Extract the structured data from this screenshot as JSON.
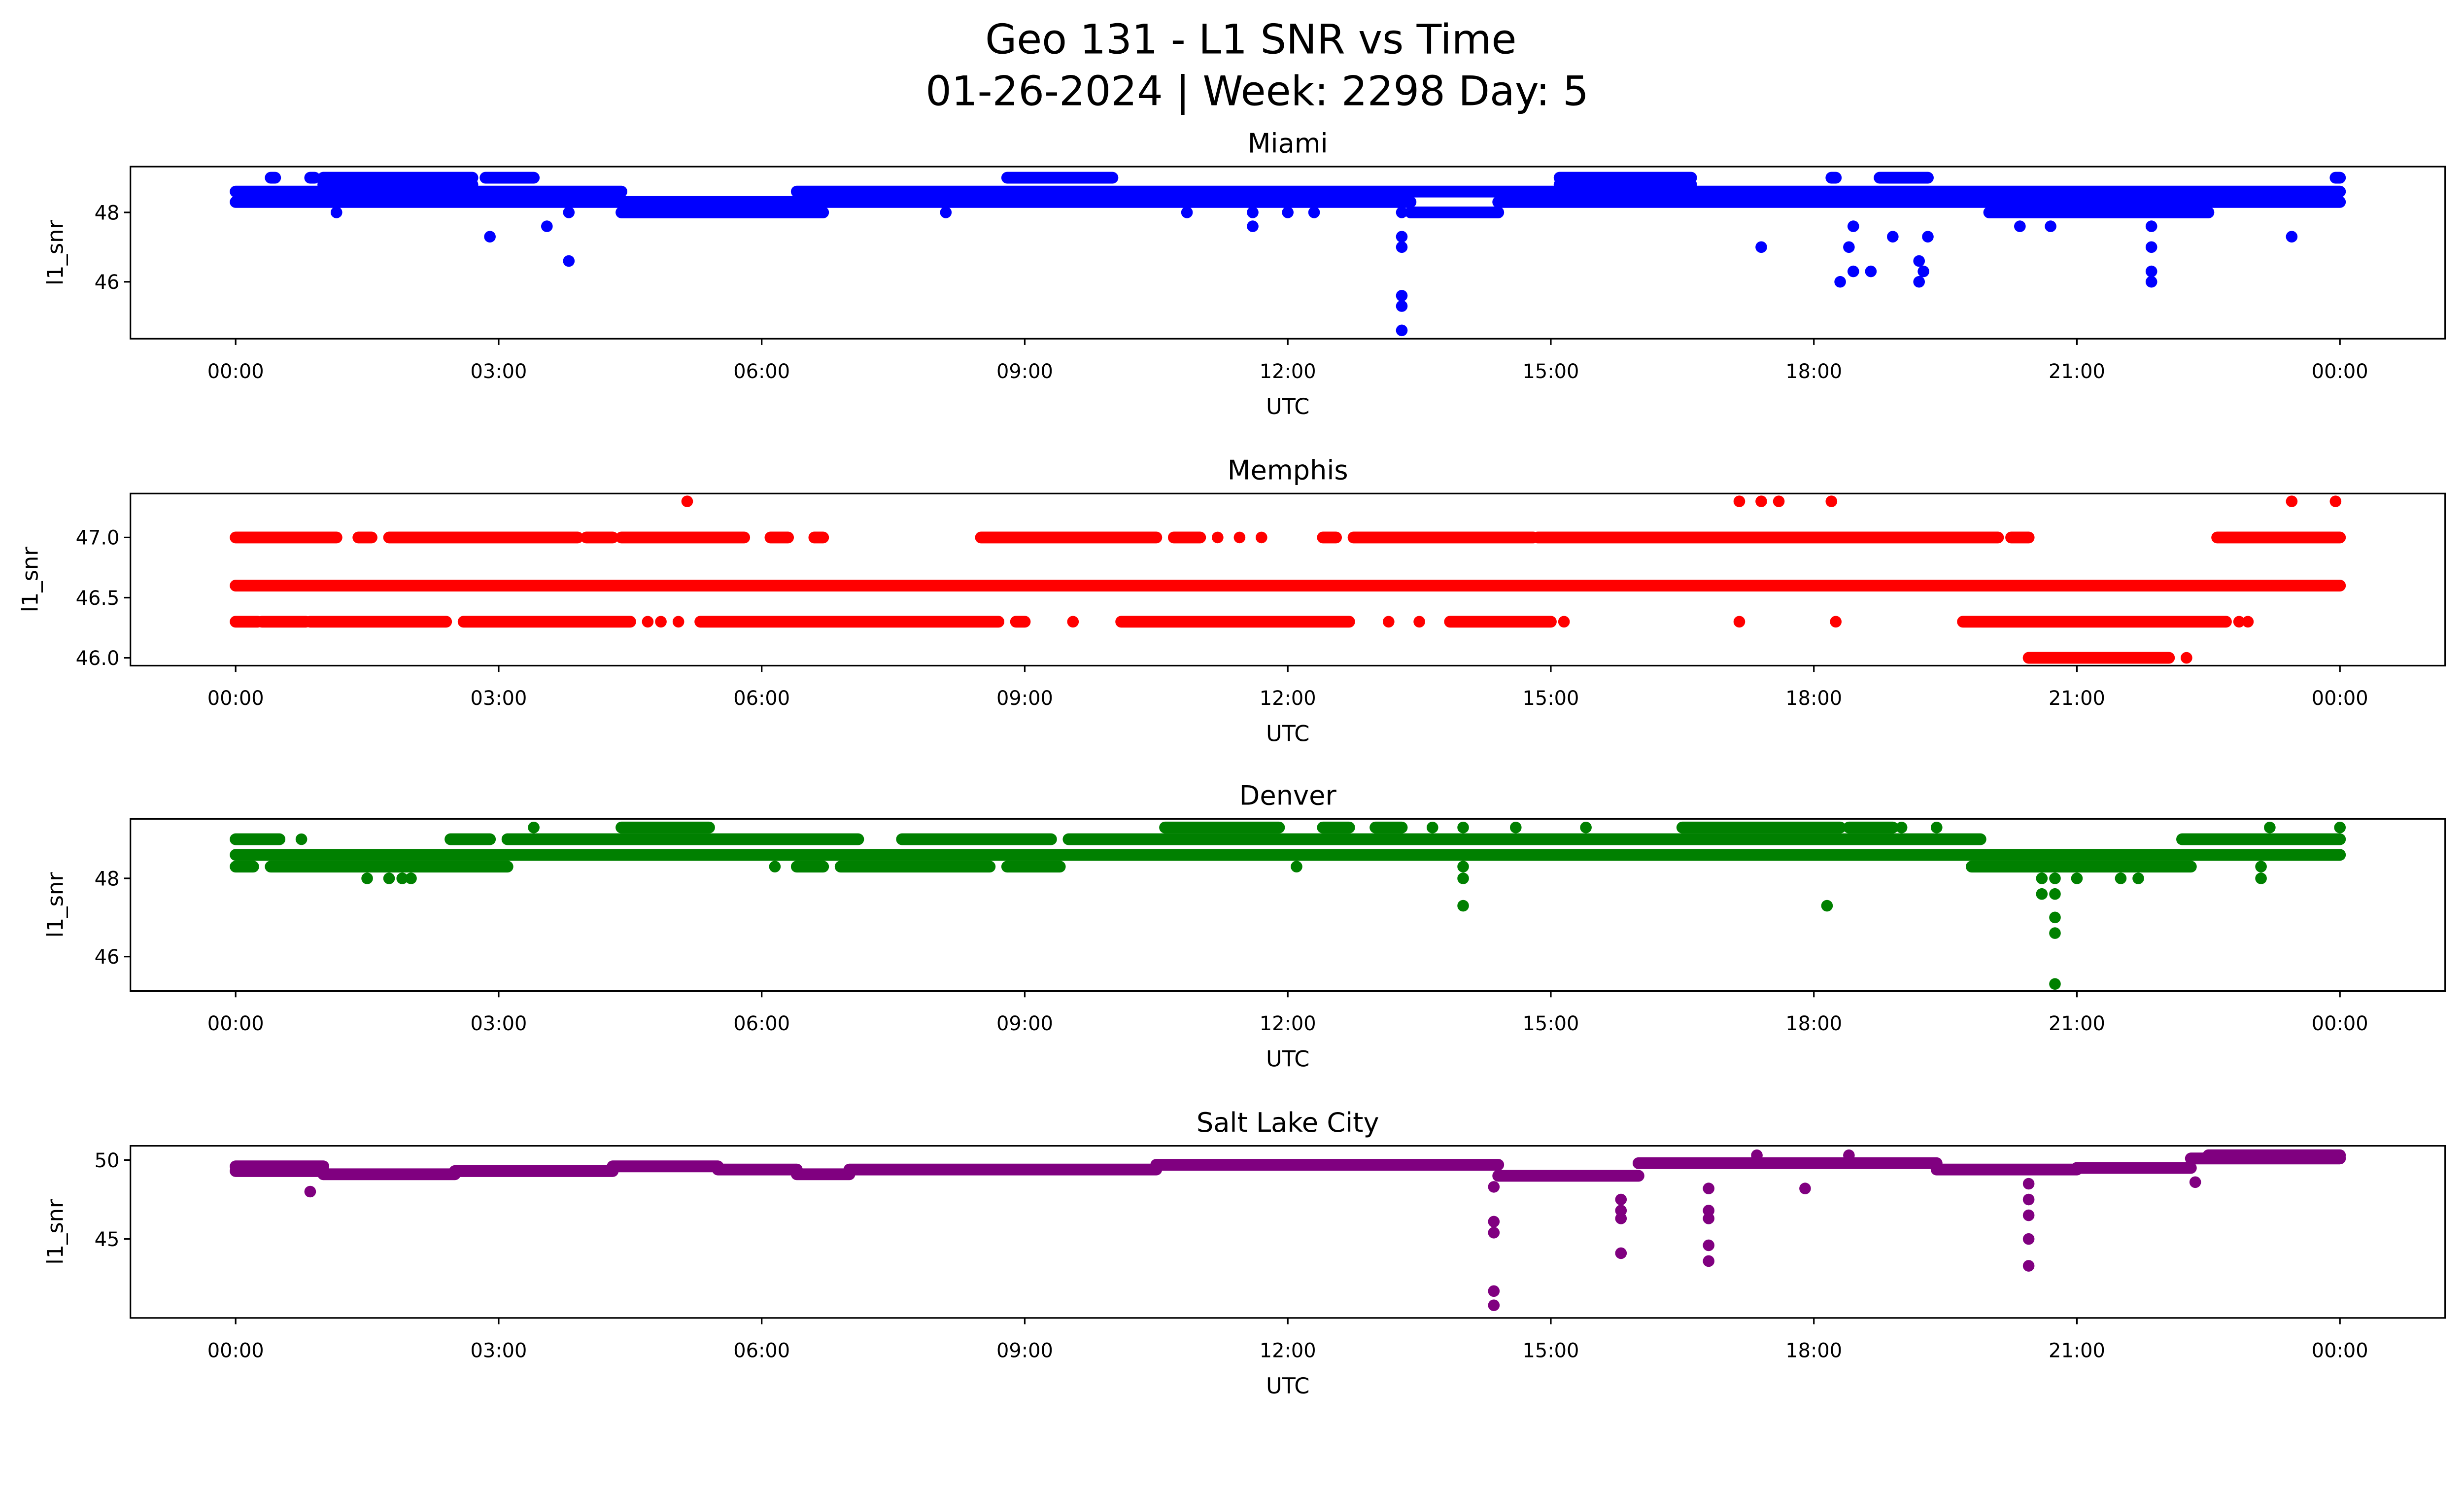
{
  "chart_data": {
    "type": "scatter",
    "title": [
      "Geo 131 - L1 SNR vs Time",
      "01-26-2024 | Week: 2298 Day: 5"
    ],
    "xlabel": "UTC",
    "xlim_hours": [
      -1.2,
      25.2
    ],
    "xticks": [
      "00:00",
      "03:00",
      "06:00",
      "09:00",
      "12:00",
      "15:00",
      "18:00",
      "21:00",
      "00:00"
    ],
    "xtick_hours": [
      0,
      3,
      6,
      9,
      12,
      15,
      18,
      21,
      24
    ],
    "grid": false,
    "panels": [
      {
        "title": "Miami",
        "ylabel": "l1_snr",
        "color": "#0000ff",
        "ylim": [
          44.36,
          49.32
        ],
        "yticks": [
          46,
          48
        ],
        "ytick_labels": [
          "46",
          "48"
        ],
        "bands": [
          [
            0,
            4.4,
            48.3
          ],
          [
            0,
            4.4,
            48.6
          ],
          [
            1.0,
            2.7,
            48.8
          ],
          [
            1.0,
            2.7,
            49.0
          ],
          [
            4.4,
            6.7,
            48.0
          ],
          [
            4.4,
            6.7,
            48.3
          ],
          [
            6.4,
            24,
            48.6
          ],
          [
            6.7,
            13.4,
            48.3
          ],
          [
            8.8,
            10.0,
            49.0
          ],
          [
            13.4,
            14.4,
            48.0
          ],
          [
            14.4,
            20.0,
            48.3
          ],
          [
            15.1,
            16.6,
            49.0
          ],
          [
            15.1,
            16.6,
            48.8
          ],
          [
            20.0,
            22.5,
            48.0
          ],
          [
            20.0,
            24,
            48.3
          ],
          [
            0.4,
            0.45,
            49.0
          ],
          [
            0.85,
            0.9,
            49.0
          ],
          [
            2.85,
            3.4,
            49.0
          ],
          [
            18.2,
            18.25,
            49.0
          ],
          [
            18.75,
            19.3,
            49.0
          ],
          [
            23.95,
            24,
            49.0
          ]
        ],
        "points": [
          [
            1.15,
            48.0
          ],
          [
            3.8,
            48.0
          ],
          [
            8.1,
            48.0
          ],
          [
            10.85,
            48.0
          ],
          [
            11.6,
            48.0
          ],
          [
            12.0,
            48.0
          ],
          [
            12.3,
            48.0
          ],
          [
            13.3,
            48.0
          ],
          [
            2.9,
            47.3
          ],
          [
            3.55,
            47.6
          ],
          [
            3.8,
            46.6
          ],
          [
            11.6,
            47.6
          ],
          [
            13.3,
            47.3
          ],
          [
            13.3,
            47.0
          ],
          [
            13.3,
            45.6
          ],
          [
            13.3,
            45.3
          ],
          [
            13.3,
            44.6
          ],
          [
            17.4,
            47.0
          ],
          [
            18.3,
            46.0
          ],
          [
            18.4,
            47.0
          ],
          [
            18.45,
            47.6
          ],
          [
            18.45,
            46.3
          ],
          [
            18.65,
            46.3
          ],
          [
            18.9,
            47.3
          ],
          [
            19.2,
            46.6
          ],
          [
            19.2,
            46.0
          ],
          [
            19.25,
            46.3
          ],
          [
            19.3,
            47.3
          ],
          [
            20.35,
            47.6
          ],
          [
            20.7,
            47.6
          ],
          [
            21.85,
            47.6
          ],
          [
            21.85,
            47.0
          ],
          [
            21.85,
            46.3
          ],
          [
            21.85,
            46.0
          ],
          [
            23.45,
            47.3
          ]
        ]
      },
      {
        "title": "Memphis",
        "ylabel": "l1_snr",
        "color": "#ff0000",
        "ylim": [
          45.935,
          47.365
        ],
        "yticks": [
          46.0,
          46.5,
          47.0
        ],
        "ytick_labels": [
          "46.0",
          "46.5",
          "47.0"
        ],
        "bands": [
          [
            0,
            24,
            46.6
          ],
          [
            0,
            1.15,
            47.0
          ],
          [
            1.4,
            1.55,
            47.0
          ],
          [
            1.75,
            3.9,
            47.0
          ],
          [
            4.0,
            4.3,
            47.0
          ],
          [
            4.4,
            5.8,
            47.0
          ],
          [
            6.1,
            6.3,
            47.0
          ],
          [
            6.6,
            6.7,
            47.0
          ],
          [
            8.5,
            10.5,
            47.0
          ],
          [
            10.7,
            11.0,
            47.0
          ],
          [
            12.4,
            12.55,
            47.0
          ],
          [
            12.75,
            14.8,
            47.0
          ],
          [
            14.85,
            20.1,
            47.0
          ],
          [
            20.25,
            20.45,
            47.0
          ],
          [
            22.6,
            24,
            47.0
          ],
          [
            0,
            0.25,
            46.3
          ],
          [
            0.3,
            0.8,
            46.3
          ],
          [
            0.85,
            2.4,
            46.3
          ],
          [
            2.6,
            4.5,
            46.3
          ],
          [
            5.3,
            8.7,
            46.3
          ],
          [
            8.9,
            9.0,
            46.3
          ],
          [
            10.1,
            12.7,
            46.3
          ],
          [
            13.85,
            15.0,
            46.3
          ],
          [
            19.7,
            22.7,
            46.3
          ],
          [
            20.45,
            22.05,
            46.0
          ]
        ],
        "points": [
          [
            11.2,
            47.0
          ],
          [
            11.45,
            47.0
          ],
          [
            11.7,
            47.0
          ],
          [
            5.15,
            47.3
          ],
          [
            17.15,
            47.3
          ],
          [
            17.4,
            47.3
          ],
          [
            17.6,
            47.3
          ],
          [
            18.2,
            47.3
          ],
          [
            23.45,
            47.3
          ],
          [
            23.95,
            47.3
          ],
          [
            4.7,
            46.3
          ],
          [
            4.85,
            46.3
          ],
          [
            5.05,
            46.3
          ],
          [
            9.55,
            46.3
          ],
          [
            13.15,
            46.3
          ],
          [
            13.5,
            46.3
          ],
          [
            15.15,
            46.3
          ],
          [
            17.15,
            46.3
          ],
          [
            18.25,
            46.3
          ],
          [
            22.85,
            46.3
          ],
          [
            22.95,
            46.3
          ],
          [
            22.25,
            46.0
          ]
        ]
      },
      {
        "title": "Denver",
        "ylabel": "l1_snr",
        "color": "#008000",
        "ylim": [
          45.12,
          49.52
        ],
        "yticks": [
          46,
          48
        ],
        "ytick_labels": [
          "46",
          "48"
        ],
        "bands": [
          [
            0,
            24,
            48.6
          ],
          [
            0,
            0.2,
            48.3
          ],
          [
            0.4,
            3.1,
            48.3
          ],
          [
            6.4,
            6.7,
            48.3
          ],
          [
            6.9,
            8.6,
            48.3
          ],
          [
            8.8,
            9.4,
            48.3
          ],
          [
            19.8,
            22.3,
            48.3
          ],
          [
            0,
            0.5,
            49.0
          ],
          [
            2.45,
            2.9,
            49.0
          ],
          [
            3.1,
            7.1,
            49.0
          ],
          [
            7.6,
            9.3,
            49.0
          ],
          [
            9.5,
            19.9,
            49.0
          ],
          [
            22.2,
            24,
            49.0
          ],
          [
            4.4,
            5.4,
            49.3
          ],
          [
            10.6,
            11.9,
            49.3
          ],
          [
            12.4,
            12.7,
            49.3
          ],
          [
            13.0,
            13.3,
            49.3
          ],
          [
            16.5,
            18.3,
            49.3
          ],
          [
            18.4,
            18.9,
            49.3
          ]
        ],
        "points": [
          [
            6.15,
            48.3
          ],
          [
            12.1,
            48.3
          ],
          [
            14.0,
            48.3
          ],
          [
            23.1,
            48.3
          ],
          [
            0.75,
            49.0
          ],
          [
            3.4,
            49.3
          ],
          [
            13.65,
            49.3
          ],
          [
            14.0,
            49.3
          ],
          [
            14.6,
            49.3
          ],
          [
            15.4,
            49.3
          ],
          [
            19.0,
            49.3
          ],
          [
            19.4,
            49.3
          ],
          [
            23.2,
            49.3
          ],
          [
            24.0,
            49.3
          ],
          [
            1.5,
            48.0
          ],
          [
            1.75,
            48.0
          ],
          [
            1.9,
            48.0
          ],
          [
            2.0,
            48.0
          ],
          [
            14.0,
            48.0
          ],
          [
            20.6,
            48.0
          ],
          [
            20.75,
            48.0
          ],
          [
            21.0,
            48.0
          ],
          [
            21.5,
            48.0
          ],
          [
            21.7,
            48.0
          ],
          [
            23.1,
            48.0
          ],
          [
            14.0,
            47.3
          ],
          [
            18.15,
            47.3
          ],
          [
            20.6,
            47.6
          ],
          [
            20.75,
            47.6
          ],
          [
            20.75,
            47.0
          ],
          [
            20.75,
            46.6
          ],
          [
            20.75,
            45.3
          ]
        ]
      },
      {
        "title": "Salt Lake City",
        "ylabel": "l1_snr",
        "color": "#800080",
        "ylim": [
          40.0,
          50.9
        ],
        "yticks": [
          45,
          50
        ],
        "ytick_labels": [
          "45",
          "50"
        ],
        "bands": [
          [
            0,
            1.0,
            49.3
          ],
          [
            0,
            1.0,
            49.6
          ],
          [
            1.0,
            2.5,
            49.1
          ],
          [
            2.5,
            4.3,
            49.3
          ],
          [
            4.3,
            5.5,
            49.6
          ],
          [
            5.5,
            6.4,
            49.4
          ],
          [
            6.4,
            7.0,
            49.1
          ],
          [
            7.0,
            10.5,
            49.4
          ],
          [
            10.5,
            14.4,
            49.7
          ],
          [
            14.4,
            16.0,
            49.0
          ],
          [
            16.0,
            19.4,
            49.8
          ],
          [
            19.4,
            21.0,
            49.4
          ],
          [
            21.0,
            22.3,
            49.5
          ],
          [
            22.3,
            24,
            50.1
          ],
          [
            22.5,
            24,
            50.3
          ]
        ],
        "points": [
          [
            0.85,
            48.0
          ],
          [
            14.35,
            48.3
          ],
          [
            14.35,
            46.1
          ],
          [
            14.35,
            45.4
          ],
          [
            14.35,
            41.7
          ],
          [
            14.35,
            40.8
          ],
          [
            15.8,
            47.5
          ],
          [
            15.8,
            46.8
          ],
          [
            15.8,
            46.3
          ],
          [
            15.8,
            44.1
          ],
          [
            16.8,
            48.2
          ],
          [
            16.8,
            46.8
          ],
          [
            16.8,
            46.3
          ],
          [
            16.8,
            44.6
          ],
          [
            16.8,
            43.6
          ],
          [
            17.9,
            48.2
          ],
          [
            20.45,
            48.5
          ],
          [
            20.45,
            47.5
          ],
          [
            20.45,
            46.5
          ],
          [
            20.45,
            45.0
          ],
          [
            20.45,
            43.3
          ],
          [
            22.35,
            48.6
          ],
          [
            17.35,
            50.3
          ],
          [
            18.4,
            50.3
          ]
        ]
      }
    ]
  }
}
